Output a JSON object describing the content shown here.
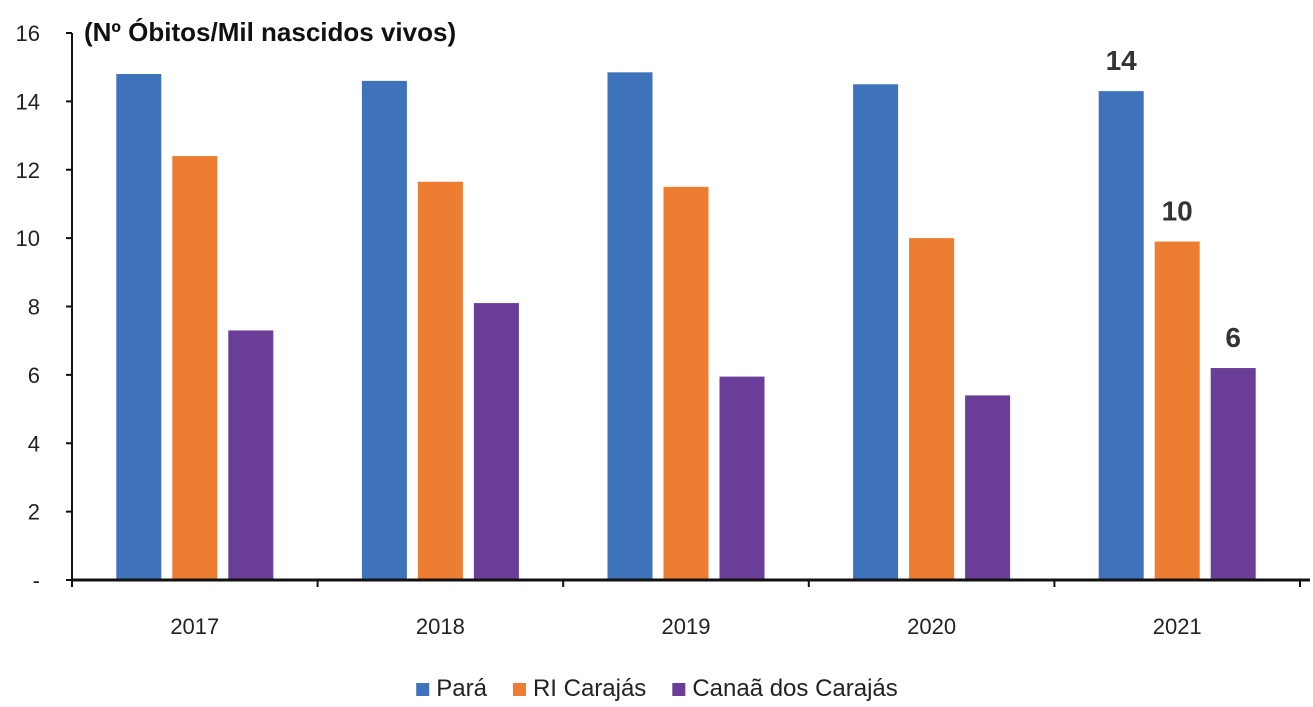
{
  "chart_data": {
    "type": "bar",
    "unit_label": "(Nº Óbitos/Mil nascidos vivos)",
    "categories": [
      "2017",
      "2018",
      "2019",
      "2020",
      "2021"
    ],
    "series": [
      {
        "name": "Pará",
        "color": "#3e72bb",
        "values": [
          14.8,
          14.6,
          14.85,
          14.5,
          14.3
        ]
      },
      {
        "name": "RI Carajás",
        "color": "#ed7d31",
        "values": [
          12.4,
          11.65,
          11.5,
          10.0,
          9.9
        ]
      },
      {
        "name": "Canaã dos Carajás",
        "color": "#6a3d98",
        "values": [
          7.3,
          8.1,
          5.95,
          5.4,
          6.2
        ]
      }
    ],
    "data_labels": [
      {
        "category": "2021",
        "series": "Pará",
        "text": "14"
      },
      {
        "category": "2021",
        "series": "RI Carajás",
        "text": "10"
      },
      {
        "category": "2021",
        "series": "Canaã dos Carajás",
        "text": "6"
      }
    ],
    "y_ticks": [
      {
        "value": 0,
        "label": "-"
      },
      {
        "value": 2,
        "label": "2"
      },
      {
        "value": 4,
        "label": "4"
      },
      {
        "value": 6,
        "label": "6"
      },
      {
        "value": 8,
        "label": "8"
      },
      {
        "value": 10,
        "label": "10"
      },
      {
        "value": 12,
        "label": "12"
      },
      {
        "value": 14,
        "label": "14"
      },
      {
        "value": 16,
        "label": "16"
      }
    ],
    "ylim": [
      0,
      16
    ],
    "grid": false,
    "legend_position": "bottom-center"
  }
}
